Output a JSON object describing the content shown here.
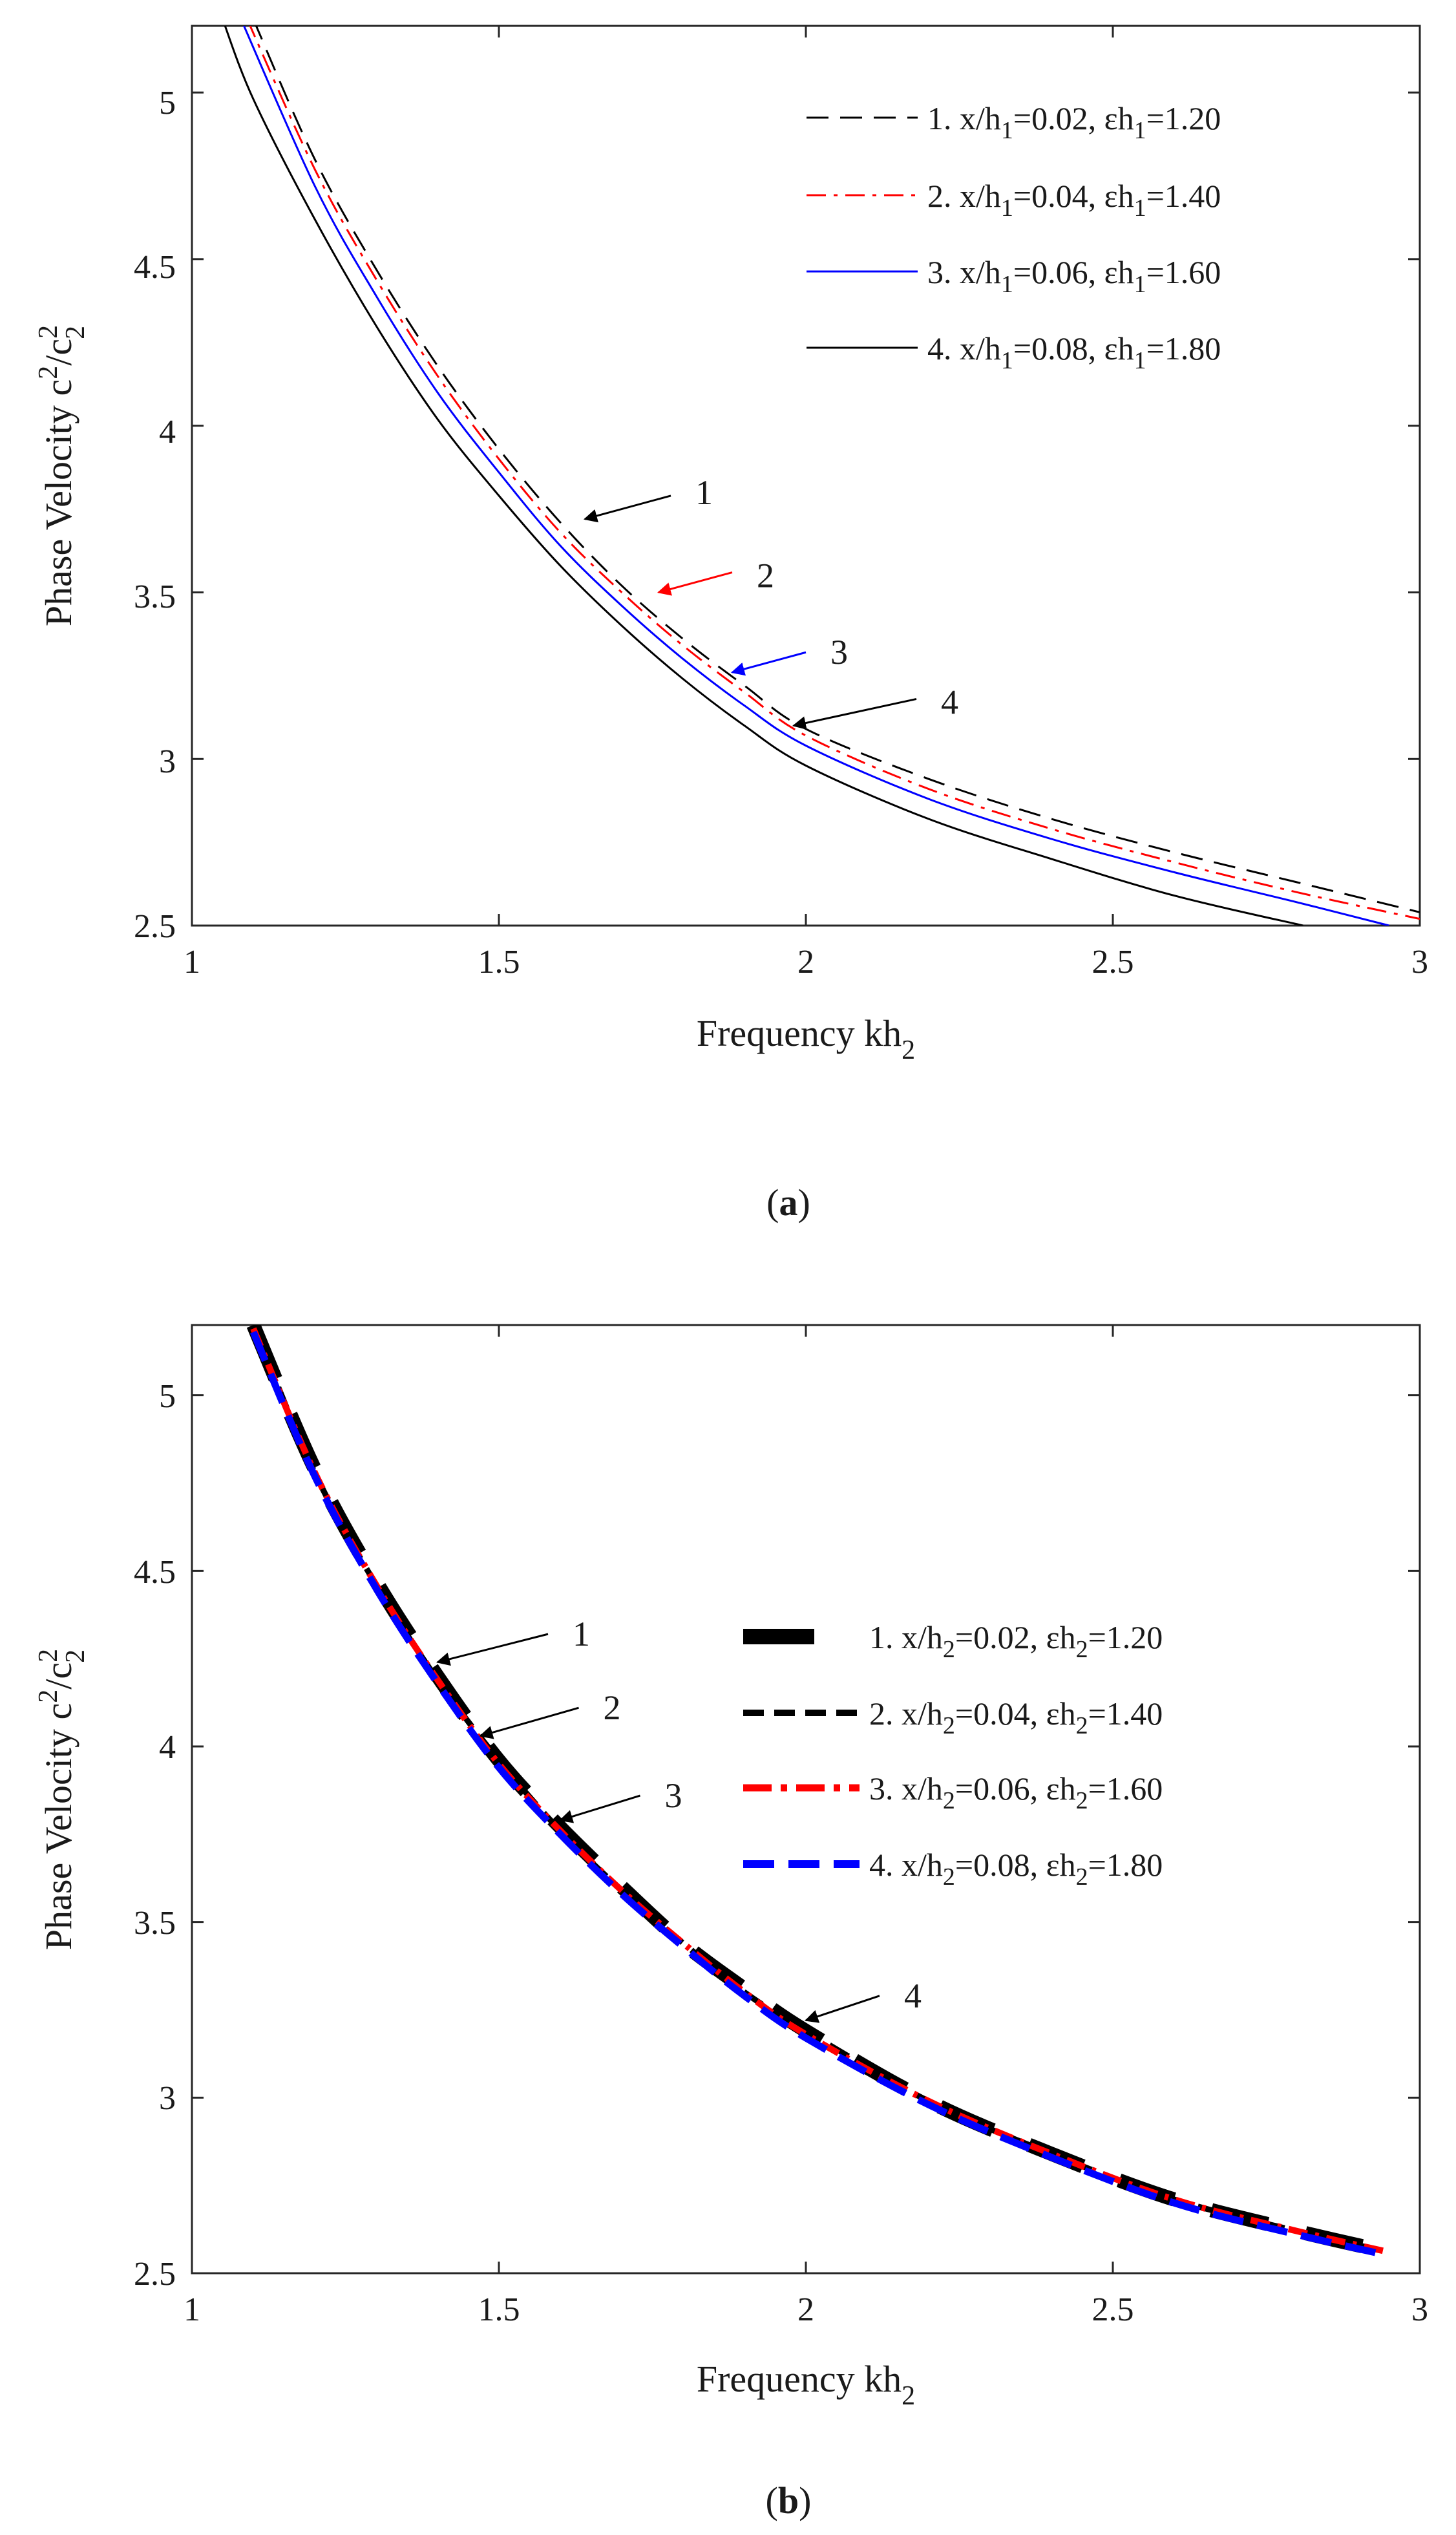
{
  "chart_data": [
    {
      "id": "a",
      "type": "line",
      "caption_open": "(",
      "caption_letter": "a",
      "caption_close": ")",
      "xlabel": "Frequency kh",
      "xlabel_sub": "2",
      "ylabel": "Phase Velocity c",
      "ylabel_sup": "2",
      "ylabel_mid": "/c",
      "ylabel_sub": "2",
      "sup2": "2",
      "xlim": [
        1,
        3
      ],
      "ylim": [
        2.5,
        5.2
      ],
      "xticks": [
        1,
        1.5,
        2,
        2.5,
        3
      ],
      "yticks": [
        2.5,
        3,
        3.5,
        4,
        4.5,
        5
      ],
      "xtick_labels": [
        "1",
        "1.5",
        "2",
        "2.5",
        "3"
      ],
      "ytick_labels": [
        "2.5",
        "3",
        "3.5",
        "4",
        "4.5",
        "5"
      ],
      "grid": false,
      "legend_position": "top-right",
      "series": [
        {
          "name": "1. x/h1=0.02, εh1=1.20",
          "legend": {
            "t1": "1. x/h",
            "s1": "1",
            "t2": "=0.02, ",
            "t3": "εh",
            "s2": "1",
            "t4": "=1.20"
          },
          "color": "#000000",
          "style": "dash",
          "width": 3,
          "x": [
            1.1,
            1.2,
            1.3,
            1.4,
            1.5,
            1.6,
            1.7,
            1.8,
            1.9,
            2.0,
            2.2,
            2.4,
            2.6,
            2.8,
            3.0
          ],
          "y": [
            5.22,
            4.8,
            4.47,
            4.18,
            3.93,
            3.71,
            3.52,
            3.36,
            3.22,
            3.09,
            2.94,
            2.82,
            2.72,
            2.63,
            2.54
          ]
        },
        {
          "name": "2. x/h1=0.04, εh1=1.40",
          "legend": {
            "t1": "2. x/h",
            "s1": "1",
            "t2": "=0.04, ",
            "t3": "εh",
            "s2": "1",
            "t4": "=1.40"
          },
          "color": "#ff0000",
          "style": "dashdot",
          "width": 3,
          "x": [
            1.09,
            1.2,
            1.3,
            1.4,
            1.5,
            1.6,
            1.7,
            1.8,
            1.9,
            2.0,
            2.2,
            2.4,
            2.6,
            2.8,
            3.0
          ],
          "y": [
            5.22,
            4.77,
            4.44,
            4.15,
            3.9,
            3.68,
            3.5,
            3.34,
            3.2,
            3.07,
            2.91,
            2.79,
            2.69,
            2.6,
            2.52
          ]
        },
        {
          "name": "3. x/h1=0.06, εh1=1.60",
          "legend": {
            "t1": "3. x/h",
            "s1": "1",
            "t2": "=0.06, ",
            "t3": "εh",
            "s2": "1",
            "t4": "=1.60"
          },
          "color": "#0000ff",
          "style": "solid",
          "width": 3,
          "x": [
            1.08,
            1.2,
            1.3,
            1.4,
            1.5,
            1.6,
            1.7,
            1.8,
            1.9,
            2.0,
            2.2,
            2.4,
            2.6,
            2.8,
            2.95
          ],
          "y": [
            5.22,
            4.72,
            4.39,
            4.1,
            3.86,
            3.64,
            3.46,
            3.3,
            3.16,
            3.04,
            2.88,
            2.76,
            2.66,
            2.57,
            2.5
          ]
        },
        {
          "name": "4. x/h1=0.08, εh1=1.80",
          "legend": {
            "t1": "4. x/h",
            "s1": "1",
            "t2": "=0.08, ",
            "t3": "εh",
            "s2": "1",
            "t4": "=1.80"
          },
          "color": "#000000",
          "style": "solid",
          "width": 3,
          "x": [
            1.05,
            1.1,
            1.2,
            1.3,
            1.4,
            1.5,
            1.6,
            1.7,
            1.8,
            1.9,
            2.0,
            2.2,
            2.4,
            2.6,
            2.81
          ],
          "y": [
            5.22,
            4.98,
            4.62,
            4.3,
            4.02,
            3.79,
            3.58,
            3.4,
            3.24,
            3.1,
            2.98,
            2.82,
            2.7,
            2.59,
            2.5
          ]
        }
      ],
      "annotations": [
        {
          "text": "1",
          "color": "#000000",
          "tip": [
            1.64,
            3.72
          ],
          "tail": [
            1.78,
            3.79
          ],
          "label_at": [
            1.82,
            3.8
          ]
        },
        {
          "text": "2",
          "color": "#ff0000",
          "tip": [
            1.76,
            3.5
          ],
          "tail": [
            1.88,
            3.56
          ],
          "label_at": [
            1.92,
            3.55
          ]
        },
        {
          "text": "3",
          "color": "#0000ff",
          "tip": [
            1.88,
            3.26
          ],
          "tail": [
            2.0,
            3.32
          ],
          "label_at": [
            2.04,
            3.32
          ]
        },
        {
          "text": "4",
          "color": "#000000",
          "tip": [
            1.98,
            3.1
          ],
          "tail": [
            2.18,
            3.18
          ],
          "label_at": [
            2.22,
            3.17
          ]
        }
      ]
    },
    {
      "id": "b",
      "type": "line",
      "caption_open": "(",
      "caption_letter": "b",
      "caption_close": ")",
      "xlabel": "Frequency kh",
      "xlabel_sub": "2",
      "ylabel": "Phase Velocity c",
      "ylabel_sup": "2",
      "ylabel_mid": "/c",
      "ylabel_sub": "2",
      "sup2": "2",
      "xlim": [
        1,
        3
      ],
      "ylim": [
        2.5,
        5.2
      ],
      "xticks": [
        1,
        1.5,
        2,
        2.5,
        3
      ],
      "yticks": [
        2.5,
        3,
        3.5,
        4,
        4.5,
        5
      ],
      "xtick_labels": [
        "1",
        "1.5",
        "2",
        "2.5",
        "3"
      ],
      "ytick_labels": [
        "2.5",
        "3",
        "3.5",
        "4",
        "4.5",
        "5"
      ],
      "grid": false,
      "legend_position": "center-right",
      "series": [
        {
          "name": "1. x/h2=0.02, εh2=1.20",
          "legend": {
            "t1": "1. x/h",
            "s1": "2",
            "t2": "=0.02, ",
            "t3": "εh",
            "s2": "2",
            "t4": "=1.20"
          },
          "color": "#000000",
          "style": "thickdash",
          "width": 22,
          "x": [
            1.1,
            1.2,
            1.3,
            1.4,
            1.5,
            1.6,
            1.7,
            1.8,
            1.9,
            2.0,
            2.2,
            2.4,
            2.6,
            2.8,
            2.95
          ],
          "y": [
            5.2,
            4.79,
            4.47,
            4.2,
            3.96,
            3.77,
            3.6,
            3.44,
            3.31,
            3.19,
            2.99,
            2.84,
            2.71,
            2.62,
            2.56
          ]
        },
        {
          "name": "2. x/h2=0.04, εh2=1.40",
          "legend": {
            "t1": "2. x/h",
            "s1": "2",
            "t2": "=0.04, ",
            "t3": "εh",
            "s2": "2",
            "t4": "=1.40"
          },
          "color": "#000000",
          "style": "dash",
          "width": 9,
          "x": [
            1.1,
            1.2,
            1.3,
            1.4,
            1.5,
            1.6,
            1.7,
            1.8,
            1.9,
            2.0,
            2.2,
            2.4,
            2.6,
            2.8,
            2.95
          ],
          "y": [
            5.2,
            4.78,
            4.46,
            4.19,
            3.96,
            3.76,
            3.59,
            3.44,
            3.3,
            3.19,
            2.99,
            2.84,
            2.71,
            2.62,
            2.56
          ]
        },
        {
          "name": "3. x/h2=0.06, εh2=1.60",
          "legend": {
            "t1": "3. x/h",
            "s1": "2",
            "t2": "=0.06, ",
            "t3": "εh",
            "s2": "2",
            "t4": "=1.60"
          },
          "color": "#ff0000",
          "style": "dashdot",
          "width": 10,
          "x": [
            1.1,
            1.2,
            1.3,
            1.4,
            1.5,
            1.6,
            1.7,
            1.8,
            1.9,
            2.0,
            2.2,
            2.4,
            2.6,
            2.8,
            2.95
          ],
          "y": [
            5.19,
            4.78,
            4.46,
            4.19,
            3.95,
            3.76,
            3.59,
            3.44,
            3.3,
            3.18,
            2.99,
            2.84,
            2.71,
            2.62,
            2.56
          ]
        },
        {
          "name": "4. x/h2=0.08, εh2=1.80",
          "legend": {
            "t1": "4. x/h",
            "s1": "2",
            "t2": "=0.08, ",
            "t3": "εh",
            "s2": "2",
            "t4": "=1.80"
          },
          "color": "#0000ff",
          "style": "bluedash",
          "width": 11,
          "x": [
            1.1,
            1.2,
            1.3,
            1.4,
            1.5,
            1.6,
            1.7,
            1.8,
            1.9,
            2.0,
            2.2,
            2.4,
            2.6,
            2.8,
            2.95
          ],
          "y": [
            5.18,
            4.77,
            4.45,
            4.18,
            3.94,
            3.75,
            3.58,
            3.43,
            3.29,
            3.17,
            2.98,
            2.83,
            2.7,
            2.61,
            2.55
          ]
        }
      ],
      "annotations": [
        {
          "text": "1",
          "color": "#000000",
          "tip": [
            1.4,
            4.24
          ],
          "tail": [
            1.58,
            4.32
          ],
          "label_at": [
            1.62,
            4.32
          ]
        },
        {
          "text": "2",
          "color": "#000000",
          "tip": [
            1.47,
            4.03
          ],
          "tail": [
            1.63,
            4.11
          ],
          "label_at": [
            1.67,
            4.11
          ]
        },
        {
          "text": "3",
          "color": "#000000",
          "tip": [
            1.6,
            3.79
          ],
          "tail": [
            1.73,
            3.86
          ],
          "label_at": [
            1.77,
            3.86
          ]
        },
        {
          "text": "4",
          "color": "#000000",
          "tip": [
            2.0,
            3.22
          ],
          "tail": [
            2.12,
            3.29
          ],
          "label_at": [
            2.16,
            3.29
          ]
        }
      ]
    }
  ]
}
